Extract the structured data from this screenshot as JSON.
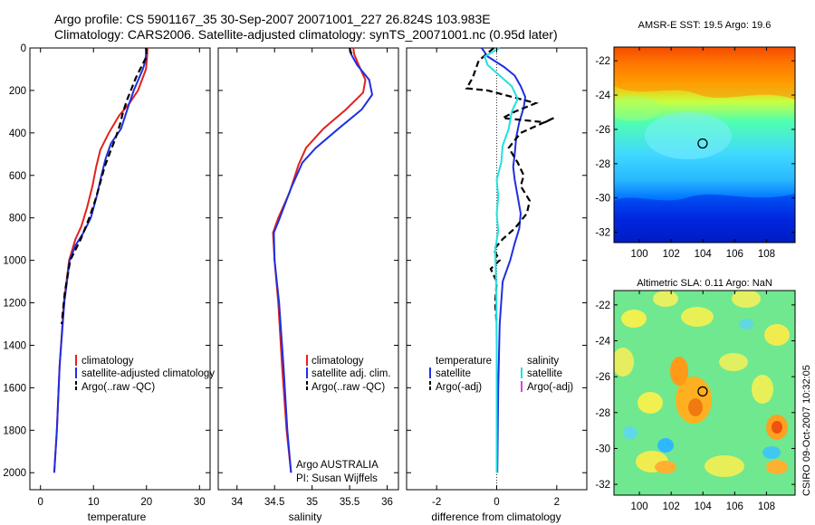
{
  "header": {
    "line1": "Argo profile: CS 5901167_35 30-Sep-2007 20071001_227 26.824S 103.983E",
    "line2": "Climatology: CARS2006. Satellite-adjusted climatology: synTS_20071001.nc (0.95d later)"
  },
  "colors": {
    "climatology": "#e4211c",
    "satellite": "#1f2fe0",
    "argo": "#000000",
    "satellite_salinity": "#22e0e0",
    "argo_salinity_adj": "#e040e0"
  },
  "chart_data": [
    {
      "id": "temperature",
      "type": "line",
      "xlabel": "temperature",
      "ylabel": "",
      "xlim": [
        -2,
        32
      ],
      "ylim": [
        2080,
        0
      ],
      "xticks": [
        "0",
        "10",
        "20",
        "30"
      ],
      "xtick_values": [
        0,
        10,
        20,
        30
      ],
      "yticks": [
        "0",
        "200",
        "400",
        "600",
        "800",
        "1000",
        "1200",
        "1400",
        "1600",
        "1800",
        "2000"
      ],
      "ytick_values": [
        0,
        200,
        400,
        600,
        800,
        1000,
        1200,
        1400,
        1600,
        1800,
        2000
      ],
      "legend": [
        "climatology",
        "satellite-adjusted climatology",
        "Argo(..raw -QC)"
      ],
      "series": [
        {
          "name": "climatology",
          "style": "solid",
          "color_key": "climatology",
          "points": [
            [
              20.2,
              0
            ],
            [
              20.1,
              50
            ],
            [
              19.9,
              100
            ],
            [
              18.4,
              200
            ],
            [
              16.8,
              260
            ],
            [
              14.8,
              320
            ],
            [
              12.9,
              400
            ],
            [
              11.3,
              480
            ],
            [
              10.5,
              560
            ],
            [
              9.8,
              650
            ],
            [
              8.8,
              750
            ],
            [
              7.7,
              840
            ],
            [
              6.6,
              900
            ],
            [
              5.4,
              1000
            ],
            [
              4.4,
              1200
            ],
            [
              3.6,
              1500
            ],
            [
              3.1,
              1800
            ],
            [
              2.6,
              2000
            ]
          ]
        },
        {
          "name": "satellite-adjusted climatology",
          "style": "solid",
          "color_key": "satellite",
          "points": [
            [
              20.0,
              0
            ],
            [
              19.8,
              60
            ],
            [
              19.3,
              100
            ],
            [
              17.6,
              200
            ],
            [
              16.5,
              280
            ],
            [
              15.2,
              380
            ],
            [
              13.3,
              450
            ],
            [
              12.3,
              520
            ],
            [
              11.5,
              600
            ],
            [
              10.7,
              690
            ],
            [
              9.5,
              800
            ],
            [
              8.1,
              870
            ],
            [
              6.6,
              930
            ],
            [
              5.5,
              1000
            ],
            [
              4.5,
              1200
            ],
            [
              3.6,
              1500
            ],
            [
              3.1,
              1800
            ],
            [
              2.6,
              2000
            ]
          ]
        },
        {
          "name": "Argo(..raw -QC)",
          "style": "dash",
          "color_key": "argo",
          "points": [
            [
              19.9,
              0
            ],
            [
              20.0,
              40
            ],
            [
              19.2,
              80
            ],
            [
              18.0,
              140
            ],
            [
              17.2,
              190
            ],
            [
              16.4,
              240
            ],
            [
              15.6,
              300
            ],
            [
              15.0,
              360
            ],
            [
              14.1,
              430
            ],
            [
              13.3,
              480
            ],
            [
              12.1,
              560
            ],
            [
              11.1,
              650
            ],
            [
              10.3,
              720
            ],
            [
              9.2,
              800
            ],
            [
              7.6,
              900
            ],
            [
              5.6,
              1000
            ],
            [
              4.6,
              1150
            ],
            [
              4.0,
              1300
            ]
          ]
        }
      ]
    },
    {
      "id": "salinity",
      "type": "line",
      "xlabel": "salinity",
      "ylabel": "",
      "xlim": [
        33.75,
        36.15
      ],
      "ylim": [
        2080,
        0
      ],
      "xticks": [
        "34",
        "34.5",
        "35",
        "35.5",
        "36"
      ],
      "xtick_values": [
        34,
        34.5,
        35,
        35.5,
        36
      ],
      "legend": [
        "climatology",
        "satellite adj. clim.",
        "Argo(..raw -QC)"
      ],
      "annotations": [
        "Argo AUSTRALIA",
        "PI: Susan Wijffels"
      ],
      "series": [
        {
          "name": "climatology",
          "style": "solid",
          "color_key": "climatology",
          "points": [
            [
              35.55,
              0
            ],
            [
              35.56,
              30
            ],
            [
              35.62,
              80
            ],
            [
              35.71,
              150
            ],
            [
              35.68,
              210
            ],
            [
              35.45,
              290
            ],
            [
              35.15,
              380
            ],
            [
              34.92,
              470
            ],
            [
              34.82,
              550
            ],
            [
              34.7,
              680
            ],
            [
              34.55,
              800
            ],
            [
              34.48,
              870
            ],
            [
              34.5,
              1000
            ],
            [
              34.55,
              1200
            ],
            [
              34.6,
              1500
            ],
            [
              34.66,
              1800
            ],
            [
              34.72,
              2000
            ]
          ]
        },
        {
          "name": "satellite adj. clim.",
          "style": "solid",
          "color_key": "satellite",
          "points": [
            [
              35.5,
              0
            ],
            [
              35.52,
              30
            ],
            [
              35.6,
              80
            ],
            [
              35.76,
              150
            ],
            [
              35.8,
              220
            ],
            [
              35.66,
              290
            ],
            [
              35.35,
              380
            ],
            [
              35.05,
              470
            ],
            [
              34.87,
              540
            ],
            [
              34.72,
              660
            ],
            [
              34.57,
              800
            ],
            [
              34.49,
              870
            ],
            [
              34.5,
              1000
            ],
            [
              34.56,
              1200
            ],
            [
              34.62,
              1500
            ],
            [
              34.67,
              1800
            ],
            [
              34.72,
              2000
            ]
          ]
        },
        {
          "name": "Argo(..raw -QC)",
          "style": "dash",
          "color_key": "argo",
          "points": [
            [
              35.5,
              0
            ],
            [
              35.52,
              25
            ],
            [
              35.56,
              40
            ]
          ]
        }
      ]
    },
    {
      "id": "difference",
      "type": "line",
      "xlabel": "difference from climatology",
      "ylabel": "",
      "xlim": [
        -3,
        3
      ],
      "ylim": [
        2080,
        0
      ],
      "xticks": [
        "-2",
        "0",
        "2"
      ],
      "xtick_values": [
        -2,
        0,
        2
      ],
      "legend_temperature_title": "temperature",
      "legend_temperature": [
        "satellite",
        "Argo(-adj)"
      ],
      "legend_salinity_title": "salinity",
      "legend_salinity": [
        "satellite",
        "Argo(-adj)"
      ],
      "series": [
        {
          "name": "temperature satellite",
          "style": "solid",
          "color_key": "satellite",
          "points": [
            [
              -0.5,
              0
            ],
            [
              -0.3,
              40
            ],
            [
              0.25,
              90
            ],
            [
              0.6,
              130
            ],
            [
              0.8,
              180
            ],
            [
              0.95,
              230
            ],
            [
              0.9,
              280
            ],
            [
              0.75,
              350
            ],
            [
              0.65,
              420
            ],
            [
              0.6,
              500
            ],
            [
              0.55,
              560
            ],
            [
              0.6,
              620
            ],
            [
              0.7,
              700
            ],
            [
              0.8,
              780
            ],
            [
              0.75,
              850
            ],
            [
              0.6,
              920
            ],
            [
              0.45,
              1000
            ],
            [
              0.2,
              1100
            ],
            [
              0.1,
              1300
            ],
            [
              0.05,
              1600
            ],
            [
              0.02,
              2000
            ]
          ]
        },
        {
          "name": "temperature Argo(-adj)",
          "style": "dash",
          "color_key": "argo",
          "points": [
            [
              -0.1,
              0
            ],
            [
              -0.6,
              60
            ],
            [
              -0.8,
              140
            ],
            [
              -1.0,
              190
            ],
            [
              -0.3,
              200
            ],
            [
              1.3,
              260
            ],
            [
              0.6,
              300
            ],
            [
              0.2,
              330
            ],
            [
              1.6,
              350
            ],
            [
              1.9,
              330
            ],
            [
              0.8,
              400
            ],
            [
              0.4,
              470
            ],
            [
              0.7,
              540
            ],
            [
              0.9,
              600
            ],
            [
              0.8,
              650
            ],
            [
              1.1,
              720
            ],
            [
              1.0,
              780
            ],
            [
              0.6,
              850
            ],
            [
              0.2,
              900
            ],
            [
              -0.1,
              950
            ],
            [
              0.1,
              1000
            ],
            [
              -0.2,
              1040
            ],
            [
              0.0,
              1100
            ],
            [
              -0.05,
              1200
            ],
            [
              0.0,
              1300
            ]
          ]
        },
        {
          "name": "salinity satellite",
          "style": "solid",
          "color_key": "satellite_salinity",
          "points": [
            [
              0.1,
              0
            ],
            [
              -0.4,
              40
            ],
            [
              -0.3,
              80
            ],
            [
              0.1,
              130
            ],
            [
              0.5,
              180
            ],
            [
              0.7,
              240
            ],
            [
              0.5,
              300
            ],
            [
              0.4,
              380
            ],
            [
              0.2,
              460
            ],
            [
              0.15,
              540
            ],
            [
              0.0,
              620
            ],
            [
              0.05,
              700
            ],
            [
              0.0,
              780
            ],
            [
              0.05,
              860
            ],
            [
              -0.05,
              950
            ],
            [
              -0.02,
              1100
            ],
            [
              0.0,
              1400
            ],
            [
              0.0,
              2000
            ]
          ]
        }
      ]
    },
    {
      "id": "amsr-sst-map",
      "type": "heatmap",
      "title": "AMSR-E SST: 19.5  Argo: 19.6",
      "xticks": [
        "100",
        "102",
        "104",
        "106",
        "108"
      ],
      "xtick_values": [
        100,
        102,
        104,
        106,
        108
      ],
      "yticks": [
        "-22",
        "-24",
        "-26",
        "-28",
        "-30",
        "-32"
      ],
      "ytick_values": [
        -22,
        -24,
        -26,
        -28,
        -30,
        -32
      ],
      "xlim": [
        98.4,
        109.8
      ],
      "ylim": [
        -32.6,
        -21.2
      ],
      "marker": [
        103.98,
        -26.82
      ]
    },
    {
      "id": "altimetric-sla-map",
      "type": "heatmap",
      "title": "Altimetric SLA: 0.11  Argo: NaN",
      "xticks": [
        "100",
        "102",
        "104",
        "106",
        "108"
      ],
      "xtick_values": [
        100,
        102,
        104,
        106,
        108
      ],
      "yticks": [
        "-22",
        "-24",
        "-26",
        "-28",
        "-30",
        "-32"
      ],
      "ytick_values": [
        -22,
        -24,
        -26,
        -28,
        -30,
        -32
      ],
      "xlim": [
        98.4,
        109.8
      ],
      "ylim": [
        -32.6,
        -21.2
      ],
      "marker": [
        103.98,
        -26.82
      ]
    }
  ],
  "footer": {
    "stamp": "CSIRO 09-Oct-2007 10:32:05"
  }
}
